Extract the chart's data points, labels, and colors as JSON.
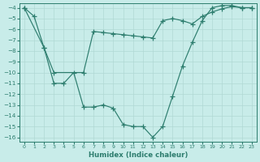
{
  "line1_x": [
    0,
    1,
    2,
    3,
    4,
    5,
    6,
    7,
    8,
    9,
    10,
    11,
    12,
    13,
    14,
    15,
    16,
    17,
    18,
    19,
    20,
    21,
    22,
    23
  ],
  "line1_y": [
    -4.0,
    -4.8,
    -7.7,
    -11.0,
    -11.0,
    -10.0,
    -13.2,
    -13.2,
    -13.0,
    -13.3,
    -14.8,
    -15.0,
    -15.0,
    -16.0,
    -15.0,
    -12.2,
    -9.4,
    -7.2,
    -5.2,
    -4.0,
    -3.8,
    -3.8,
    -4.0,
    -4.0
  ],
  "line2_x": [
    0,
    2,
    3,
    6,
    7,
    8,
    9,
    10,
    11,
    12,
    13,
    14,
    15,
    16,
    17,
    18,
    19,
    20,
    21,
    22,
    23
  ],
  "line2_y": [
    -4.0,
    -7.7,
    -10.0,
    -10.0,
    -6.2,
    -6.3,
    -6.4,
    -6.5,
    -6.6,
    -6.7,
    -6.8,
    -5.2,
    -5.0,
    -5.2,
    -5.5,
    -4.8,
    -4.4,
    -4.1,
    -3.9,
    -4.0,
    -4.0
  ],
  "bg_color": "#c8ece9",
  "line_color": "#2d7d6e",
  "grid_color": "#b0d8d4",
  "xlabel": "Humidex (Indice chaleur)",
  "xlim_min": -0.5,
  "xlim_max": 23.5,
  "ylim_min": -16.4,
  "ylim_max": -3.6,
  "xticks": [
    0,
    1,
    2,
    3,
    4,
    5,
    6,
    7,
    8,
    9,
    10,
    11,
    12,
    13,
    14,
    15,
    16,
    17,
    18,
    19,
    20,
    21,
    22,
    23
  ],
  "yticks": [
    -4,
    -5,
    -6,
    -7,
    -8,
    -9,
    -10,
    -11,
    -12,
    -13,
    -14,
    -15,
    -16
  ]
}
